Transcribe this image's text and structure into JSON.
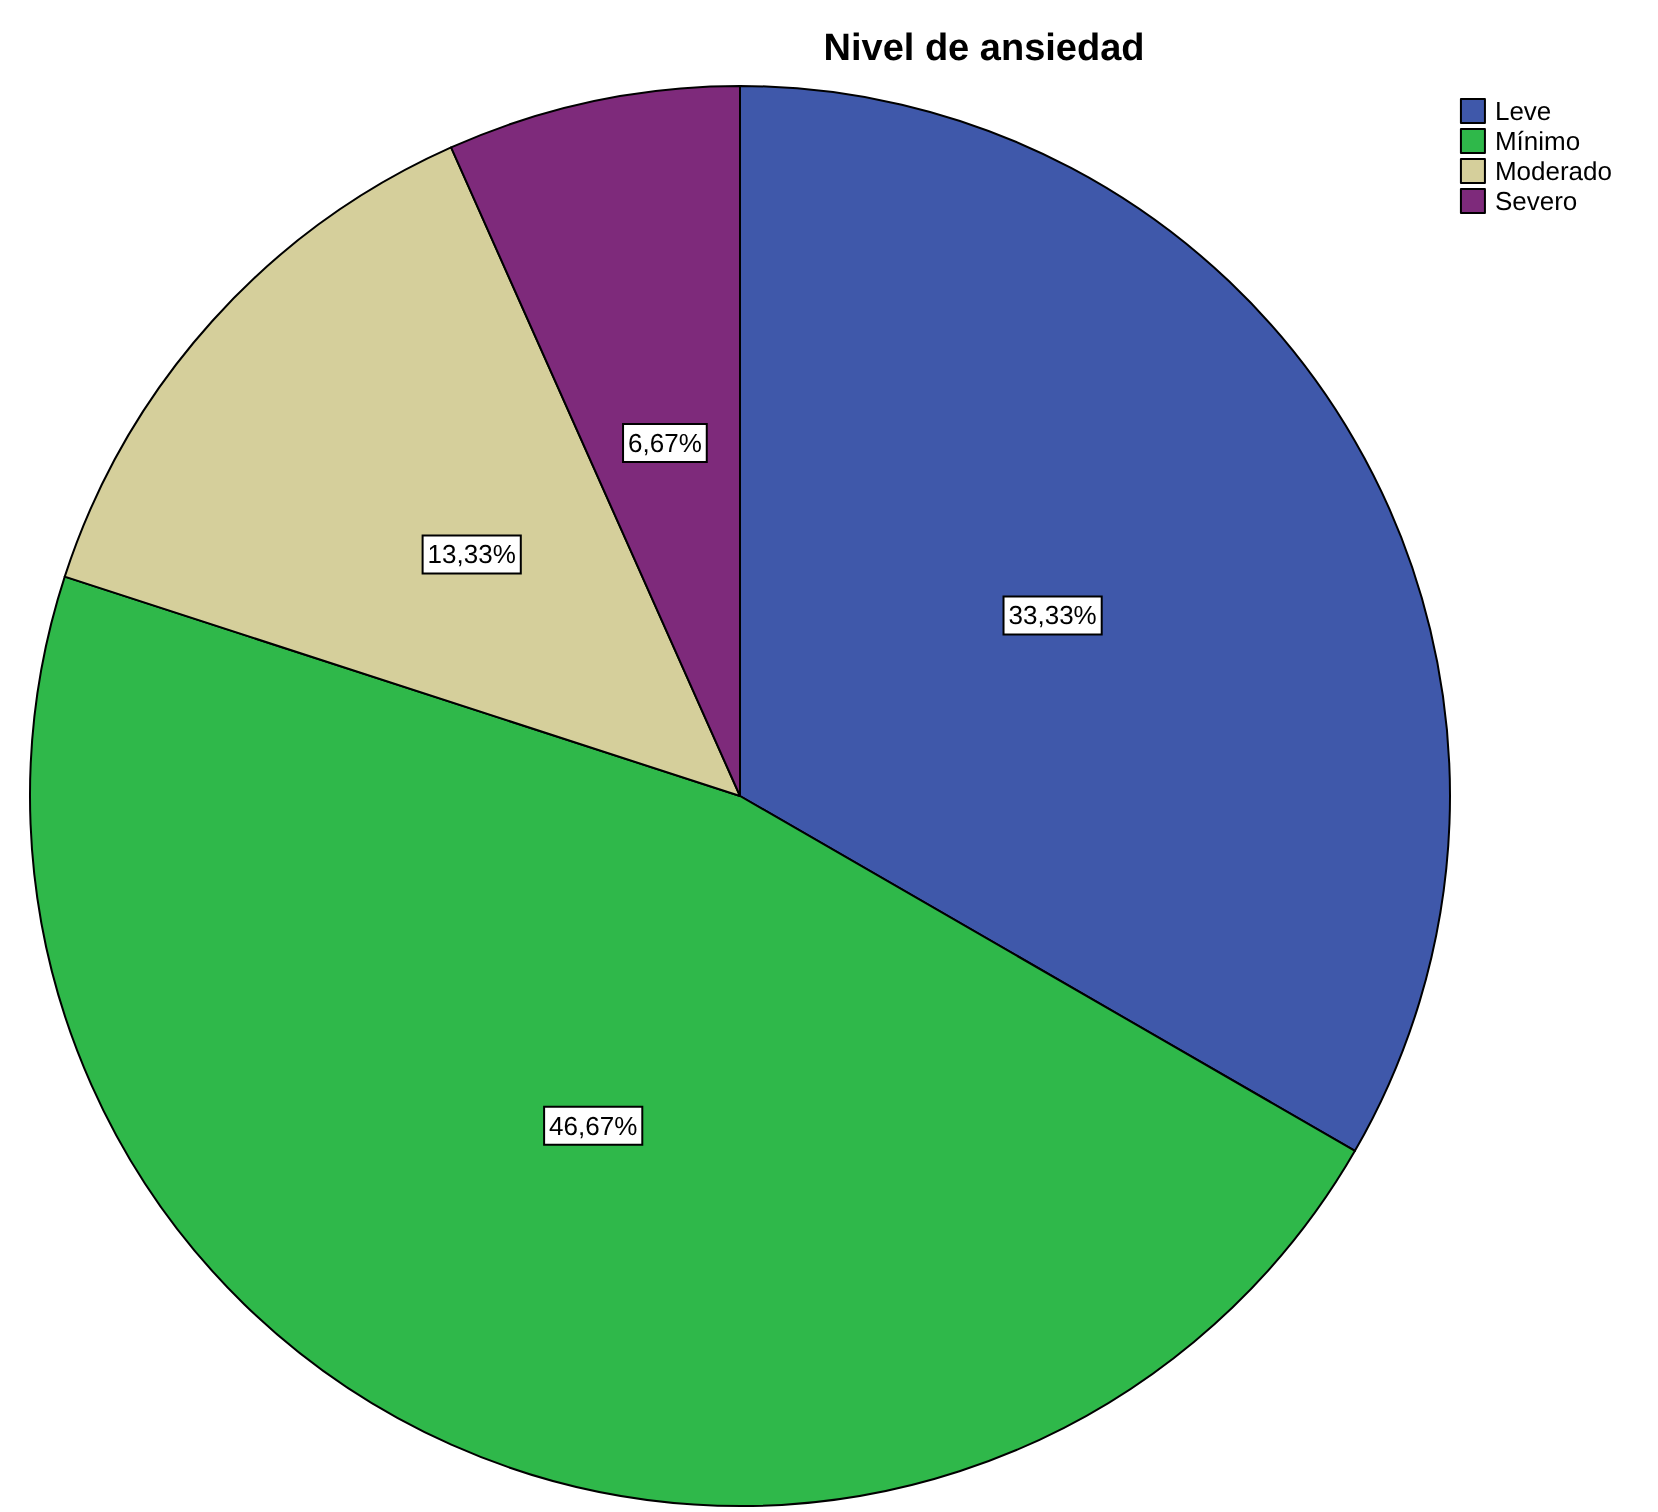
{
  "chart_data": {
    "type": "pie",
    "title": "Nivel de ansiedad",
    "categories": [
      "Leve",
      "Mínimo",
      "Moderado",
      "Severo"
    ],
    "values": [
      33.33,
      46.67,
      13.33,
      6.67
    ],
    "colors": [
      "#3f58aa",
      "#2fb84a",
      "#d5cf9b",
      "#7e2a7b"
    ],
    "value_labels": [
      "33,33%",
      "46,67%",
      "13,33%",
      "6,67%"
    ],
    "legend": "top right"
  }
}
